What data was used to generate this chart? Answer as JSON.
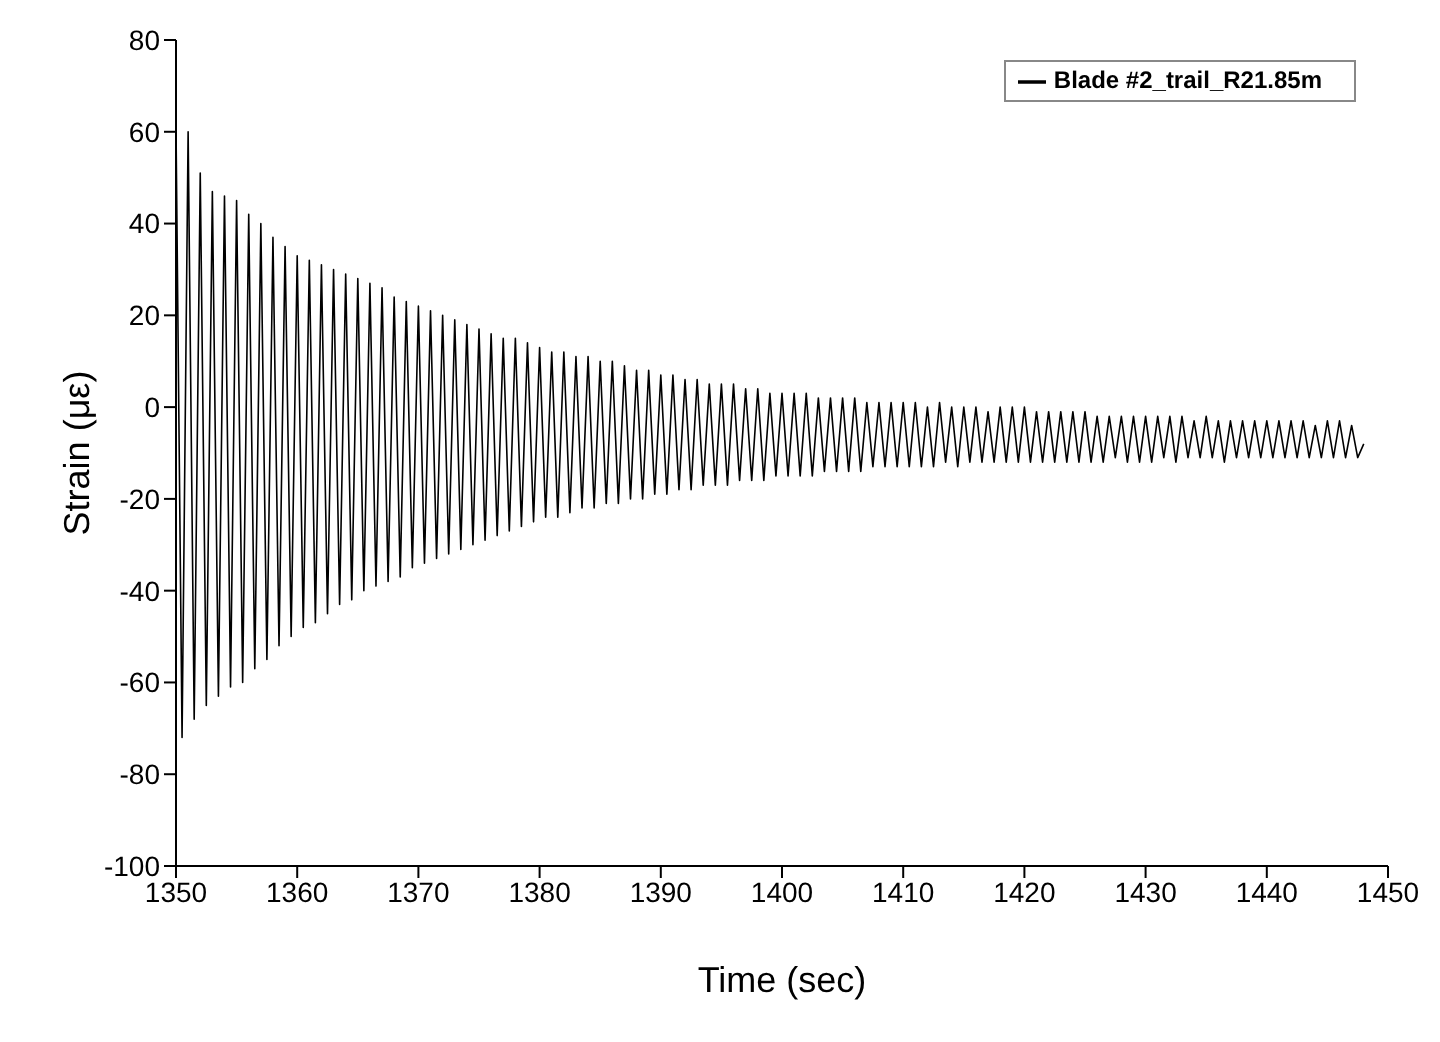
{
  "chart_data": {
    "type": "line",
    "xlabel": "Time (sec)",
    "ylabel": "Strain (με)",
    "xlim": [
      1350,
      1450
    ],
    "xticks": [
      1350,
      1360,
      1370,
      1380,
      1390,
      1400,
      1410,
      1420,
      1430,
      1440,
      1450
    ],
    "ylim": [
      -100,
      80
    ],
    "yticks": [
      -100,
      -80,
      -60,
      -40,
      -20,
      0,
      20,
      40,
      60,
      80
    ],
    "legend": "top right",
    "marker": "none",
    "grid": false,
    "x": [
      1350,
      1350.5,
      1351,
      1351.5,
      1352,
      1352.5,
      1353,
      1353.5,
      1354,
      1354.5,
      1355,
      1355.5,
      1356,
      1356.5,
      1357,
      1357.5,
      1358,
      1358.5,
      1359,
      1359.5,
      1360,
      1360.5,
      1361,
      1361.5,
      1362,
      1362.5,
      1363,
      1363.5,
      1364,
      1364.5,
      1365,
      1365.5,
      1366,
      1366.5,
      1367,
      1367.5,
      1368,
      1368.5,
      1369,
      1369.5,
      1370,
      1370.5,
      1371,
      1371.5,
      1372,
      1372.5,
      1373,
      1373.5,
      1374,
      1374.5,
      1375,
      1375.5,
      1376,
      1376.5,
      1377,
      1377.5,
      1378,
      1378.5,
      1379,
      1379.5,
      1380,
      1380.5,
      1381,
      1381.5,
      1382,
      1382.5,
      1383,
      1383.5,
      1384,
      1384.5,
      1385,
      1385.5,
      1386,
      1386.5,
      1387,
      1387.5,
      1388,
      1388.5,
      1389,
      1389.5,
      1390,
      1390.5,
      1391,
      1391.5,
      1392,
      1392.5,
      1393,
      1393.5,
      1394,
      1394.5,
      1395,
      1395.5,
      1396,
      1396.5,
      1397,
      1397.5,
      1398,
      1398.5,
      1399,
      1399.5,
      1400,
      1400.5,
      1401,
      1401.5,
      1402,
      1402.5,
      1403,
      1403.5,
      1404,
      1404.5,
      1405,
      1405.5,
      1406,
      1406.5,
      1407,
      1407.5,
      1408,
      1408.5,
      1409,
      1409.5,
      1410,
      1410.5,
      1411,
      1411.5,
      1412,
      1412.5,
      1413,
      1413.5,
      1414,
      1414.5,
      1415,
      1415.5,
      1416,
      1416.5,
      1417,
      1417.5,
      1418,
      1418.5,
      1419,
      1419.5,
      1420,
      1420.5,
      1421,
      1421.5,
      1422,
      1422.5,
      1423,
      1423.5,
      1424,
      1424.5,
      1425,
      1425.5,
      1426,
      1426.5,
      1427,
      1427.5,
      1428,
      1428.5,
      1429,
      1429.5,
      1430,
      1430.5,
      1431,
      1431.5,
      1432,
      1432.5,
      1433,
      1433.5,
      1434,
      1434.5,
      1435,
      1435.5,
      1436,
      1436.5,
      1437,
      1437.5,
      1438,
      1438.5,
      1439,
      1439.5,
      1440,
      1440.5,
      1441,
      1441.5,
      1442,
      1442.5,
      1443,
      1443.5,
      1444,
      1444.5,
      1445,
      1445.5,
      1446,
      1446.5,
      1447,
      1447.5,
      1448
    ],
    "series": [
      {
        "name": "Blade #2_trail_R21.85m",
        "color": "#000000",
        "values": [
          61,
          -72,
          60,
          -68,
          51,
          -65,
          47,
          -63,
          46,
          -61,
          45,
          -60,
          42,
          -57,
          40,
          -55,
          37,
          -52,
          35,
          -50,
          33,
          -48,
          32,
          -47,
          31,
          -45,
          30,
          -43,
          29,
          -42,
          28,
          -40,
          27,
          -39,
          26,
          -38,
          24,
          -37,
          23,
          -35,
          22,
          -34,
          21,
          -33,
          20,
          -32,
          19,
          -31,
          18,
          -30,
          17,
          -29,
          16,
          -28,
          15,
          -27,
          15,
          -26,
          14,
          -25,
          13,
          -24,
          12,
          -24,
          12,
          -23,
          11,
          -22,
          11,
          -22,
          10,
          -21,
          10,
          -21,
          9,
          -20,
          8,
          -20,
          8,
          -19,
          7,
          -19,
          7,
          -18,
          6,
          -18,
          6,
          -17,
          5,
          -17,
          5,
          -17,
          5,
          -16,
          4,
          -16,
          4,
          -16,
          3,
          -15,
          3,
          -15,
          3,
          -15,
          3,
          -15,
          2,
          -14,
          2,
          -14,
          2,
          -14,
          2,
          -14,
          1,
          -13,
          1,
          -13,
          1,
          -13,
          1,
          -13,
          1,
          -13,
          0,
          -13,
          1,
          -12,
          0,
          -13,
          0,
          -12,
          0,
          -12,
          -1,
          -12,
          0,
          -12,
          0,
          -12,
          0,
          -12,
          -1,
          -12,
          -1,
          -12,
          -1,
          -12,
          -1,
          -12,
          -1,
          -12,
          -2,
          -12,
          -2,
          -11,
          -2,
          -12,
          -2,
          -12,
          -2,
          -12,
          -2,
          -11,
          -2,
          -12,
          -2,
          -11,
          -3,
          -11,
          -2,
          -11,
          -3,
          -12,
          -3,
          -11,
          -3,
          -11,
          -3,
          -11,
          -3,
          -11,
          -3,
          -11,
          -3,
          -11,
          -3,
          -11,
          -4,
          -11,
          -3,
          -11,
          -3,
          -11,
          -4,
          -11,
          -8
        ]
      }
    ]
  }
}
